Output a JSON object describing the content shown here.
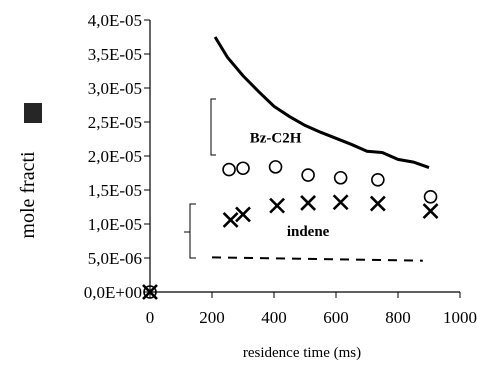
{
  "chart_data": {
    "type": "scatter",
    "xlabel": "residence time (ms)",
    "ylabel": "mole fracti",
    "xlim": [
      0,
      1000
    ],
    "ylim": [
      0,
      4e-05
    ],
    "x_ticks": [
      "0",
      "200",
      "400",
      "600",
      "800",
      "1000"
    ],
    "y_ticks": [
      "0,0E+00",
      "5,0E-06",
      "1,0E-05",
      "1,5E-05",
      "2,0E-05",
      "2,5E-05",
      "3,0E-05",
      "3,5E-05",
      "4,0E-05"
    ],
    "grid": false,
    "legend": "none",
    "annotations": [
      {
        "text": "Bz-C2H",
        "x": 405,
        "y": 2.2e-05
      },
      {
        "text": "indene",
        "x": 510,
        "y": 8.2e-06
      }
    ],
    "series": [
      {
        "marker": "line-solid",
        "x": [
          210,
          250,
          300,
          350,
          400,
          450,
          500,
          550,
          600,
          650,
          700,
          750,
          800,
          850,
          900
        ],
        "y": [
          3.75e-05,
          3.45e-05,
          3.18e-05,
          2.95e-05,
          2.73e-05,
          2.58e-05,
          2.45e-05,
          2.35e-05,
          2.26e-05,
          2.17e-05,
          2.07e-05,
          2.05e-05,
          1.95e-05,
          1.91e-05,
          1.83e-05
        ]
      },
      {
        "marker": "circle",
        "x": [
          0,
          255,
          300,
          405,
          510,
          615,
          735,
          905
        ],
        "y": [
          0,
          1.8e-05,
          1.82e-05,
          1.84e-05,
          1.72e-05,
          1.68e-05,
          1.65e-05,
          1.4e-05
        ]
      },
      {
        "marker": "x",
        "x": [
          0,
          260,
          300,
          410,
          510,
          615,
          735,
          905
        ],
        "y": [
          0,
          1.06e-05,
          1.14e-05,
          1.27e-05,
          1.31e-05,
          1.32e-05,
          1.3e-05,
          1.19e-05
        ]
      },
      {
        "marker": "line-dashed",
        "x": [
          200,
          880
        ],
        "y": [
          5.1e-06,
          4.6e-06
        ]
      }
    ]
  }
}
